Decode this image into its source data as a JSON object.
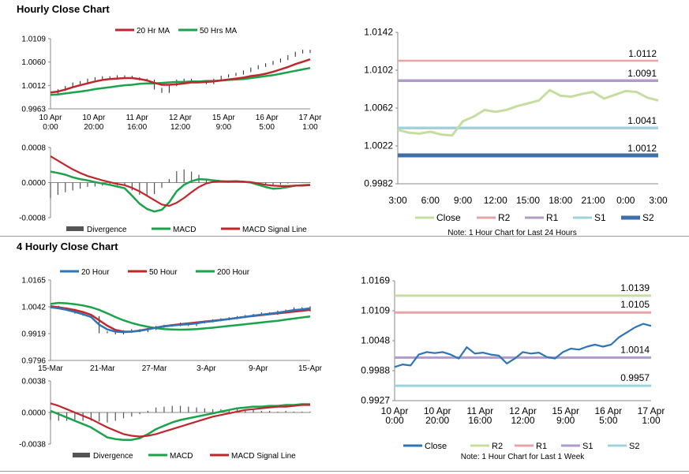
{
  "sections": {
    "hourly_title": "Hourly Close Chart",
    "four_hourly_title": "4 Hourly Close Chart"
  },
  "colors": {
    "ma20_red": "#c0272d",
    "ma50_green": "#1aa34a",
    "blue": "#2e75b6",
    "r2_pink": "#e6a4a6",
    "r1_purple": "#b09cc8",
    "s1_cyan": "#9fd3dc",
    "s2_blue": "#3f6fa8",
    "close_light_green": "#c5dea0",
    "bars": "#555555"
  },
  "chart_data": [
    {
      "id": "hourly_price",
      "type": "line",
      "legend": [
        "20 Hr MA",
        "50 Hrs MA"
      ],
      "y_ticks": [
        "1.0109",
        "1.0060",
        "1.0012",
        "0.9963"
      ],
      "ylim": [
        0.9963,
        1.0109
      ],
      "x_ticks": [
        [
          "10 Apr",
          "0:00"
        ],
        [
          "10 Apr",
          "20:00"
        ],
        [
          "11 Apr",
          "16:00"
        ],
        [
          "12 Apr",
          "12:00"
        ],
        [
          "15 Apr",
          "9:00"
        ],
        [
          "16 Apr",
          "5:00"
        ],
        [
          "17 Apr",
          "1:00"
        ]
      ],
      "series": [
        {
          "name": "Close",
          "values": [
            0.9995,
            1.0002,
            1.0009,
            1.0016,
            1.0019,
            1.0024,
            1.0027,
            1.0029,
            1.0027,
            1.0031,
            1.003,
            1.0027,
            1.0024,
            1.0022,
            1.0005,
            0.9998,
            1.0012,
            1.0022,
            1.0024,
            1.002,
            1.0018,
            1.0016,
            1.0024,
            1.003,
            1.0033,
            1.0036,
            1.0041,
            1.0047,
            1.0052,
            1.0056,
            1.0061,
            1.0066,
            1.0073,
            1.008,
            1.0084,
            1.0081
          ]
        },
        {
          "name": "20 Hr MA",
          "values": [
            0.9997,
            0.9999,
            1.0003,
            1.0008,
            1.0012,
            1.0016,
            1.002,
            1.0023,
            1.0025,
            1.0026,
            1.0027,
            1.0027,
            1.0025,
            1.0022,
            1.0017,
            1.0013,
            1.0013,
            1.0014,
            1.0016,
            1.0018,
            1.0018,
            1.0019,
            1.002,
            1.0022,
            1.0024,
            1.0026,
            1.0028,
            1.0031,
            1.0033,
            1.0036,
            1.004,
            1.0045,
            1.005,
            1.0056,
            1.0061,
            1.0066
          ]
        },
        {
          "name": "50 Hrs MA",
          "values": [
            0.9992,
            0.9993,
            0.9995,
            0.9997,
            0.9999,
            1.0001,
            1.0004,
            1.0006,
            1.0008,
            1.001,
            1.0012,
            1.0013,
            1.0015,
            1.0016,
            1.0016,
            1.0017,
            1.0018,
            1.0019,
            1.0019,
            1.002,
            1.002,
            1.0021,
            1.0021,
            1.0022,
            1.0023,
            1.0024,
            1.0025,
            1.0027,
            1.0029,
            1.0031,
            1.0033,
            1.0036,
            1.0039,
            1.0042,
            1.0045,
            1.0048
          ]
        }
      ]
    },
    {
      "id": "hourly_macd",
      "type": "line",
      "legend": [
        "Divergence",
        "MACD",
        "MACD Signal Line"
      ],
      "y_ticks": [
        "0.0008",
        "0.0000",
        "-0.0008"
      ],
      "ylim": [
        -0.0008,
        0.0008
      ],
      "series": [
        {
          "name": "MACD",
          "values": [
            0.00025,
            0.00022,
            0.00018,
            0.00012,
            8e-05,
            5e-05,
            1e-05,
            -2e-05,
            -5e-05,
            -9e-05,
            -0.00013,
            -0.0003,
            -0.00048,
            -0.0006,
            -0.00066,
            -0.00062,
            -0.00045,
            -0.0002,
            -5e-05,
            3e-05,
            8e-05,
            7e-05,
            5e-05,
            3e-05,
            2e-05,
            3e-05,
            2e-05,
            0.0,
            -5e-05,
            -0.0001,
            -0.00014,
            -0.00013,
            -0.0001,
            -7e-05,
            -6e-05,
            -5e-05
          ]
        },
        {
          "name": "MACD Signal Line",
          "values": [
            0.0006,
            0.0005,
            0.0004,
            0.0003,
            0.00022,
            0.00015,
            0.0001,
            5e-05,
            1e-05,
            -3e-05,
            -6e-05,
            -0.00012,
            -0.0002,
            -0.0003,
            -0.0004,
            -0.0005,
            -0.00053,
            -0.00046,
            -0.00035,
            -0.00022,
            -0.0001,
            -2e-05,
            2e-05,
            3e-05,
            3e-05,
            3e-05,
            2e-05,
            1e-05,
            -2e-05,
            -5e-05,
            -7e-05,
            -8e-05,
            -8e-05,
            -7e-05,
            -7e-05,
            -6e-05
          ]
        },
        {
          "name": "Divergence",
          "values": [
            -0.00035,
            -0.00028,
            -0.00022,
            -0.00018,
            -0.00014,
            -0.0001,
            -9e-05,
            -7e-05,
            -6e-05,
            -6e-05,
            -7e-05,
            -0.00018,
            -0.00028,
            -0.0003,
            -0.00026,
            -0.00012,
            8e-05,
            0.00026,
            0.0003,
            0.00025,
            0.00018,
            9e-05,
            3e-05,
            0.0,
            -1e-05,
            0.0,
            0.0,
            -1e-05,
            -3e-05,
            -5e-05,
            -7e-05,
            -5e-05,
            -2e-05,
            0.0,
            1e-05,
            1e-05
          ]
        }
      ]
    },
    {
      "id": "hourly_levels",
      "type": "line",
      "ylim": [
        0.9982,
        1.0142
      ],
      "y_ticks": [
        "1.0142",
        "1.0102",
        "1.0062",
        "1.0022",
        "0.9982"
      ],
      "x_ticks": [
        "3:00",
        "6:00",
        "9:00",
        "12:00",
        "15:00",
        "18:00",
        "21:00",
        "0:00",
        "3:00"
      ],
      "legend": [
        "Close",
        "R2",
        "R1",
        "S1",
        "S2"
      ],
      "note": "Note: 1 Hour Chart for Last 24 Hours",
      "levels": [
        {
          "name": "R2",
          "value": 1.0112,
          "label": "1.0112"
        },
        {
          "name": "R1",
          "value": 1.0091,
          "label": "1.0091"
        },
        {
          "name": "S1",
          "value": 1.0041,
          "label": "1.0041"
        },
        {
          "name": "S2",
          "value": 1.0012,
          "label": "1.0012"
        }
      ],
      "series": [
        {
          "name": "Close",
          "values": [
            1.0039,
            1.0036,
            1.0035,
            1.0037,
            1.0034,
            1.0033,
            1.0048,
            1.0053,
            1.006,
            1.0058,
            1.006,
            1.0064,
            1.0067,
            1.007,
            1.0081,
            1.0075,
            1.0074,
            1.0077,
            1.0079,
            1.0072,
            1.0076,
            1.008,
            1.0079,
            1.0073,
            1.007
          ]
        }
      ]
    },
    {
      "id": "four_hourly_price",
      "type": "line",
      "legend": [
        "20 Hour",
        "50 Hour",
        "200 Hour"
      ],
      "y_ticks": [
        "1.0165",
        "1.0042",
        "0.9919",
        "0.9796"
      ],
      "ylim": [
        0.9796,
        1.0165
      ],
      "x_ticks": [
        "15-Mar",
        "21-Mar",
        "27-Mar",
        "3-Apr",
        "9-Apr",
        "15-Apr"
      ],
      "series": [
        {
          "name": "Close",
          "values": [
            1.0042,
            1.0035,
            1.0028,
            1.0015,
            1.0005,
            0.9995,
            0.9925,
            0.9925,
            0.992,
            0.993,
            0.9935,
            0.993,
            0.994,
            0.995,
            0.9955,
            0.9958,
            0.9965,
            0.9958,
            0.997,
            0.9975,
            0.998,
            0.9985,
            0.999,
            0.9995,
            1.0,
            1.0005,
            1.0012,
            1.001,
            1.002,
            1.0025,
            1.0035,
            1.0025,
            1.004
          ]
        },
        {
          "name": "20 Hour",
          "values": [
            1.004,
            1.0035,
            1.0028,
            1.0018,
            1.0008,
            0.9995,
            0.996,
            0.9938,
            0.9928,
            0.9926,
            0.9928,
            0.9932,
            0.9938,
            0.9946,
            0.9952,
            0.9956,
            0.996,
            0.9962,
            0.9966,
            0.9972,
            0.9976,
            0.9981,
            0.9986,
            0.9991,
            0.9996,
            1.0001,
            1.0006,
            1.001,
            1.0015,
            1.0021,
            1.0027,
            1.003,
            1.0035
          ]
        },
        {
          "name": "50 Hour",
          "values": [
            1.0045,
            1.004,
            1.0034,
            1.0027,
            1.0018,
            1.0005,
            0.998,
            0.9955,
            0.9936,
            0.9928,
            0.9928,
            0.9933,
            0.994,
            0.9947,
            0.9953,
            0.9958,
            0.9962,
            0.9966,
            0.997,
            0.9974,
            0.9978,
            0.9982,
            0.9986,
            0.9991,
            0.9996,
            1.0,
            1.0004,
            1.0008,
            1.0012,
            1.0016,
            1.002,
            1.0024,
            1.0028
          ]
        },
        {
          "name": "200 Hour",
          "values": [
            1.0055,
            1.006,
            1.0058,
            1.0054,
            1.0048,
            1.004,
            1.0028,
            1.0012,
            0.9995,
            0.998,
            0.9968,
            0.9958,
            0.995,
            0.9944,
            0.994,
            0.9938,
            0.9937,
            0.9938,
            0.994,
            0.9943,
            0.9946,
            0.995,
            0.9954,
            0.9958,
            0.9962,
            0.9966,
            0.997,
            0.9974,
            0.9978,
            0.9983,
            0.9988,
            0.9993,
            0.9998
          ]
        }
      ]
    },
    {
      "id": "four_hourly_macd",
      "type": "line",
      "legend": [
        "Divergence",
        "MACD",
        "MACD Signal Line"
      ],
      "y_ticks": [
        "0.0038",
        "0.0000",
        "-0.0038"
      ],
      "ylim": [
        -0.0038,
        0.0038
      ],
      "series": [
        {
          "name": "MACD",
          "values": [
            0.0002,
            -0.0002,
            -0.0006,
            -0.001,
            -0.0014,
            -0.0018,
            -0.0024,
            -0.003,
            -0.0032,
            -0.0033,
            -0.0033,
            -0.0031,
            -0.0026,
            -0.002,
            -0.0016,
            -0.0012,
            -0.0009,
            -0.0007,
            -0.0005,
            -0.0003,
            -0.0001,
            0.0001,
            0.0003,
            0.0005,
            0.0006,
            0.0007,
            0.0007,
            0.0008,
            0.0008,
            0.0009,
            0.0009,
            0.001,
            0.001
          ]
        },
        {
          "name": "MACD Signal Line",
          "values": [
            0.0011,
            0.0008,
            0.0004,
            0.0,
            -0.0004,
            -0.0008,
            -0.0013,
            -0.0018,
            -0.0022,
            -0.0026,
            -0.0028,
            -0.0029,
            -0.0028,
            -0.0026,
            -0.0023,
            -0.002,
            -0.0017,
            -0.0014,
            -0.0011,
            -0.0008,
            -0.0005,
            -0.0003,
            -0.0001,
            0.0001,
            0.0003,
            0.0004,
            0.0005,
            0.0006,
            0.0007,
            0.0007,
            0.0008,
            0.0009,
            0.0009
          ]
        },
        {
          "name": "Divergence",
          "values": [
            -0.0009,
            -0.001,
            -0.001,
            -0.001,
            -0.001,
            -0.001,
            -0.0011,
            -0.0012,
            -0.001,
            -0.0007,
            -0.0005,
            -0.0002,
            0.0002,
            0.0006,
            0.0007,
            0.0008,
            0.0008,
            0.0007,
            0.0006,
            0.0005,
            0.0004,
            0.0004,
            0.0004,
            0.0004,
            0.0003,
            0.0003,
            0.0002,
            0.0002,
            0.0001,
            0.0002,
            0.0001,
            0.0001,
            0.0001
          ]
        }
      ]
    },
    {
      "id": "four_hourly_levels",
      "type": "line",
      "ylim": [
        0.9927,
        1.0169
      ],
      "y_ticks": [
        "1.0169",
        "1.0109",
        "1.0048",
        "0.9988",
        "0.9927"
      ],
      "x_ticks": [
        [
          "10 Apr",
          "0:00"
        ],
        [
          "10 Apr",
          "20:00"
        ],
        [
          "11 Apr",
          "16:00"
        ],
        [
          "12 Apr",
          "12:00"
        ],
        [
          "15 Apr",
          "9:00"
        ],
        [
          "16 Apr",
          "5:00"
        ],
        [
          "17 Apr",
          "1:00"
        ]
      ],
      "legend": [
        "Close",
        "R2",
        "R1",
        "S1",
        "S2"
      ],
      "note": "Note: 1 Hour Chart for Last 1 Week",
      "levels": [
        {
          "name": "R2",
          "value": 1.0139,
          "label": "1.0139"
        },
        {
          "name": "R1",
          "value": 1.0105,
          "label": "1.0105"
        },
        {
          "name": "S1",
          "value": 1.0014,
          "label": "1.0014"
        },
        {
          "name": "S2",
          "value": 0.9957,
          "label": "0.9957"
        }
      ],
      "series": [
        {
          "name": "Close",
          "values": [
            0.9995,
            1.0,
            0.9998,
            1.002,
            1.0025,
            1.0023,
            1.0025,
            1.002,
            1.0012,
            1.0035,
            1.0022,
            1.0024,
            1.002,
            1.0018,
            1.0002,
            1.0012,
            1.0025,
            1.0022,
            1.0024,
            1.0015,
            1.0012,
            1.0025,
            1.0032,
            1.003,
            1.0036,
            1.004,
            1.0036,
            1.004,
            1.0055,
            1.0065,
            1.0075,
            1.0082,
            1.0078
          ]
        }
      ]
    }
  ]
}
